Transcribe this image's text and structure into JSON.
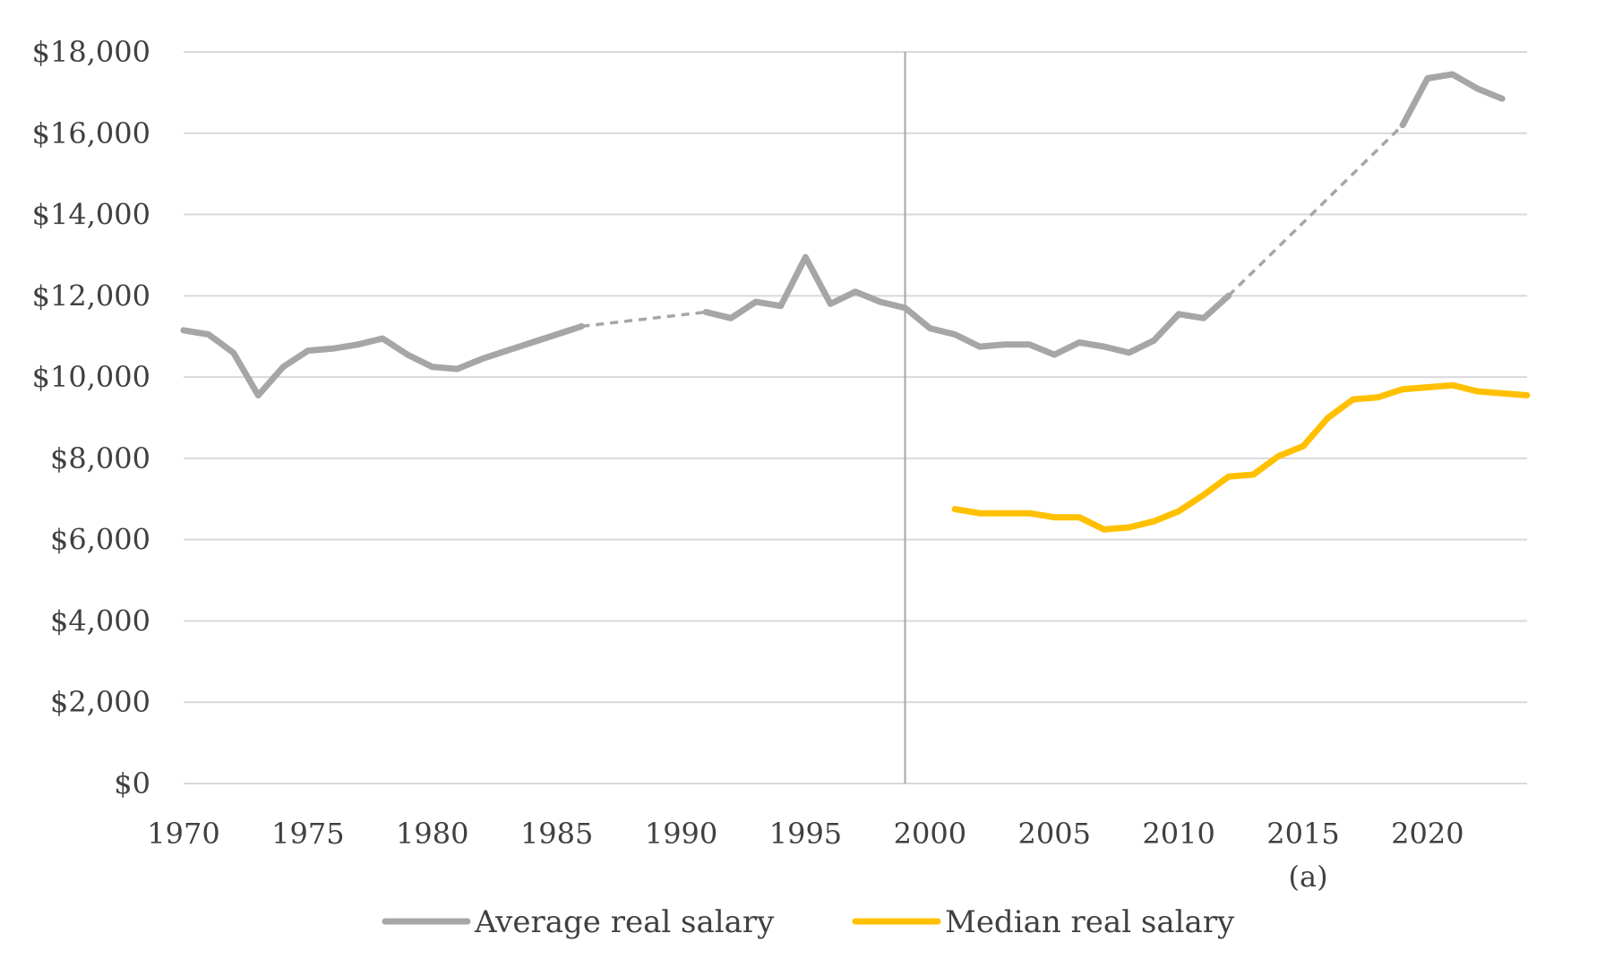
{
  "chart_data": {
    "type": "line",
    "title": "",
    "xlabel": "",
    "ylabel": "",
    "xlim": [
      1970,
      2024
    ],
    "ylim": [
      0,
      18000
    ],
    "x_ticks": [
      1970,
      1975,
      1980,
      1985,
      1990,
      1995,
      2000,
      2005,
      2010,
      2015,
      2020
    ],
    "y_ticks": [
      0,
      2000,
      4000,
      6000,
      8000,
      10000,
      12000,
      14000,
      16000,
      18000
    ],
    "y_tick_labels": [
      "$0",
      "$2,000",
      "$4,000",
      "$6,000",
      "$8,000",
      "$10,000",
      "$12,000",
      "$14,000",
      "$16,000",
      "$18,000"
    ],
    "grid": "horizontal",
    "reference_line_x": 1999,
    "annotation": "(a)",
    "legend_position": "bottom",
    "colors": {
      "average": "#A6A6A6",
      "median": "#FFC000",
      "grid": "#D9D9D9",
      "reference": "#A6A6A6"
    },
    "series": [
      {
        "name": "Average real salary",
        "color": "#A6A6A6",
        "segments": [
          {
            "style": "solid",
            "x": [
              1970,
              1971,
              1972,
              1973,
              1974,
              1975,
              1976,
              1977,
              1978,
              1979,
              1980,
              1981,
              1982,
              1983,
              1984,
              1985,
              1986
            ],
            "y": [
              11150,
              11050,
              10600,
              9550,
              10250,
              10650,
              10700,
              10800,
              10950,
              10550,
              10250,
              10200,
              10450,
              10650,
              10850,
              11050,
              11250
            ]
          },
          {
            "style": "dashed",
            "x": [
              1986,
              1991
            ],
            "y": [
              11250,
              11600
            ]
          },
          {
            "style": "solid",
            "x": [
              1991,
              1992,
              1993,
              1994,
              1995,
              1996,
              1997,
              1998,
              1999,
              2000,
              2001,
              2002,
              2003,
              2004,
              2005,
              2006,
              2007,
              2008,
              2009,
              2010,
              2011,
              2012
            ],
            "y": [
              11600,
              11450,
              11850,
              11750,
              12950,
              11800,
              12100,
              11850,
              11700,
              11200,
              11050,
              10750,
              10800,
              10800,
              10550,
              10850,
              10750,
              10600,
              10900,
              11550,
              11450,
              12000
            ]
          },
          {
            "style": "dashed",
            "x": [
              2012,
              2019
            ],
            "y": [
              12000,
              16200
            ]
          },
          {
            "style": "solid",
            "x": [
              2019,
              2020,
              2021,
              2022,
              2023
            ],
            "y": [
              16200,
              17350,
              17450,
              17100,
              16850
            ]
          }
        ]
      },
      {
        "name": "Median real salary",
        "color": "#FFC000",
        "segments": [
          {
            "style": "solid",
            "x": [
              2001,
              2002,
              2003,
              2004,
              2005,
              2006,
              2007,
              2008,
              2009,
              2010,
              2011,
              2012,
              2013,
              2014,
              2015,
              2016,
              2017,
              2018,
              2019,
              2020,
              2021,
              2022,
              2023,
              2024
            ],
            "y": [
              6750,
              6650,
              6650,
              6650,
              6550,
              6550,
              6250,
              6300,
              6450,
              6700,
              7100,
              7550,
              7600,
              8050,
              8300,
              9000,
              9450,
              9500,
              9700,
              9750,
              9800,
              9650,
              9600,
              9550
            ]
          }
        ]
      }
    ]
  }
}
